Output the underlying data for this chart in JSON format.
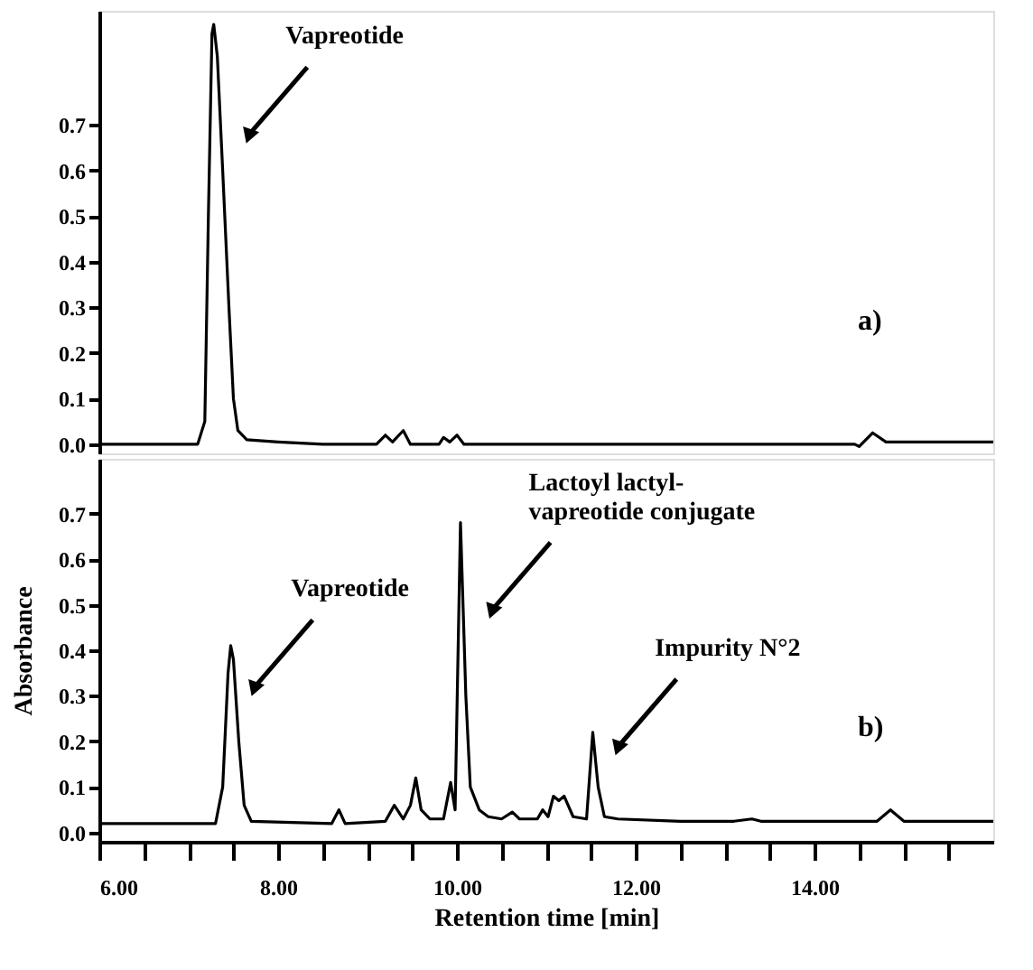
{
  "chart_data": [
    {
      "type": "line",
      "x": [
        6.0,
        7.1,
        7.18,
        7.22,
        7.26,
        7.28,
        7.32,
        7.38,
        7.45,
        7.5,
        7.55,
        7.65,
        8.0,
        8.5,
        9.1,
        9.2,
        9.28,
        9.4,
        9.48,
        9.8,
        9.85,
        9.92,
        10.0,
        10.08,
        11.0,
        12.0,
        13.0,
        14.0,
        14.45,
        14.5,
        14.65,
        14.8,
        15.0,
        16.0
      ],
      "series": [
        {
          "color": "#000000",
          "values": [
            0.0,
            0.0,
            0.05,
            0.5,
            0.9,
            0.92,
            0.85,
            0.6,
            0.3,
            0.1,
            0.03,
            0.01,
            0.005,
            0.0,
            0.0,
            0.02,
            0.005,
            0.03,
            0.0,
            0.0,
            0.015,
            0.005,
            0.02,
            0.0,
            0.0,
            0.0,
            0.0,
            0.0,
            0.0,
            -0.005,
            0.025,
            0.005,
            0.005,
            0.005
          ]
        }
      ],
      "xlim": [
        6,
        16
      ],
      "ylim": [
        -0.02,
        0.95
      ],
      "yticks": [
        {
          "value": 0,
          "label": "0.0"
        },
        0.1,
        0.2,
        0.3,
        0.4,
        0.5,
        0.6,
        0.7
      ],
      "tick_labels": "y",
      "grid": false,
      "marker": "none",
      "line_style": "solid",
      "annotations": [
        {
          "text": "Vapreotide",
          "x": 7.68,
          "y": 0.68
        },
        "a)"
      ]
    },
    {
      "type": "line",
      "x": [
        6.0,
        7.3,
        7.38,
        7.44,
        7.47,
        7.5,
        7.56,
        7.62,
        7.7,
        8.6,
        8.68,
        8.75,
        9.2,
        9.3,
        9.4,
        9.48,
        9.54,
        9.6,
        9.7,
        9.85,
        9.93,
        9.98,
        10.04,
        10.1,
        10.15,
        10.25,
        10.35,
        10.5,
        10.62,
        10.7,
        10.9,
        10.96,
        11.02,
        11.08,
        11.14,
        11.2,
        11.3,
        11.45,
        11.52,
        11.58,
        11.65,
        11.8,
        12.5,
        13.1,
        13.3,
        13.4,
        14.7,
        14.85,
        15.0,
        16.0
      ],
      "series": [
        {
          "color": "#000000",
          "values": [
            0.02,
            0.02,
            0.1,
            0.35,
            0.41,
            0.38,
            0.2,
            0.06,
            0.025,
            0.02,
            0.05,
            0.02,
            0.025,
            0.06,
            0.03,
            0.06,
            0.12,
            0.05,
            0.03,
            0.03,
            0.11,
            0.05,
            0.68,
            0.3,
            0.1,
            0.05,
            0.035,
            0.03,
            0.045,
            0.03,
            0.03,
            0.05,
            0.035,
            0.08,
            0.07,
            0.08,
            0.035,
            0.03,
            0.22,
            0.1,
            0.035,
            0.03,
            0.025,
            0.025,
            0.03,
            0.025,
            0.025,
            0.05,
            0.025,
            0.025
          ]
        }
      ],
      "xlabel": "Retention time [min]",
      "ylabel": "Absorbance",
      "xlim": [
        6,
        16
      ],
      "ylim": [
        -0.02,
        0.82
      ],
      "xticks": [
        {
          "value": 6,
          "label": "6.00"
        },
        {
          "value": 6.5,
          "label": null
        },
        {
          "value": 7,
          "label": null
        },
        {
          "value": 7.5,
          "label": null
        },
        {
          "value": 8,
          "label": "8.00"
        },
        {
          "value": 8.5,
          "label": null
        },
        {
          "value": 9,
          "label": null
        },
        {
          "value": 9.5,
          "label": null
        },
        {
          "value": 10,
          "label": "10.00"
        },
        {
          "value": 10.5,
          "label": null
        },
        {
          "value": 11,
          "label": null
        },
        {
          "value": 11.5,
          "label": null
        },
        {
          "value": 12,
          "label": "12.00"
        },
        {
          "value": 12.5,
          "label": null
        },
        {
          "value": 13,
          "label": null
        },
        {
          "value": 13.5,
          "label": null
        },
        {
          "value": 14,
          "label": "14.00"
        },
        {
          "value": 14.5,
          "label": null
        },
        {
          "value": 15,
          "label": null
        },
        {
          "value": 15.5,
          "label": null
        }
      ],
      "yticks": [
        {
          "value": 0,
          "label": "0.0"
        },
        0.1,
        0.2,
        0.3,
        0.4,
        0.5,
        0.6,
        0.7
      ],
      "grid": false,
      "marker": "none",
      "line_style": "solid",
      "annotations": [
        {
          "text": "Vapreotide",
          "x": 7.74,
          "y": 0.32
        },
        {
          "text": "Lactoyl lactyl-\nvapreotide conjugate",
          "x": 10.4,
          "y": 0.49
        },
        {
          "text": "Impurity N°2",
          "x": 11.81,
          "y": 0.19
        },
        "b)"
      ]
    }
  ]
}
